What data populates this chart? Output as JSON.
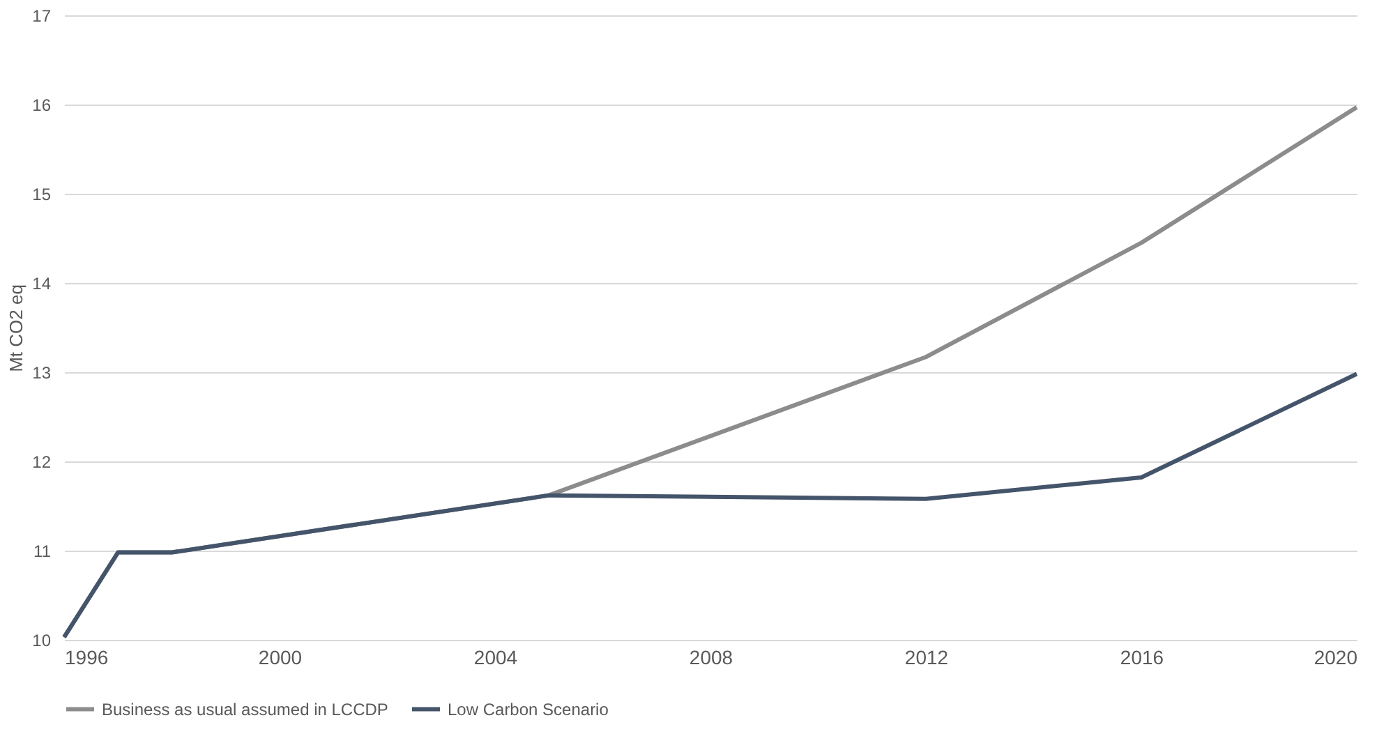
{
  "chart_data": {
    "type": "line",
    "ylabel": "Mt CO2 eq",
    "x": [
      1996,
      1997,
      1998,
      2005,
      2012,
      2016,
      2020
    ],
    "series": [
      {
        "name": "Business as usual assumed in LCCDP",
        "color": "#8c8c8c",
        "values": [
          10.03,
          10.98,
          10.98,
          11.62,
          13.17,
          14.45,
          15.97
        ]
      },
      {
        "name": "Low Carbon Scenario",
        "color": "#44546a",
        "values": [
          10.03,
          10.98,
          10.98,
          11.62,
          11.58,
          11.82,
          12.98
        ]
      }
    ],
    "xlim": [
      1996,
      2020
    ],
    "xticks": [
      1996,
      2000,
      2004,
      2008,
      2012,
      2016,
      2020
    ],
    "ylim": [
      10,
      17
    ],
    "yticks": [
      10,
      11,
      12,
      13,
      14,
      15,
      16,
      17
    ],
    "grid": "y",
    "legend": "bottom",
    "marker": "none",
    "line_style": "solid"
  }
}
